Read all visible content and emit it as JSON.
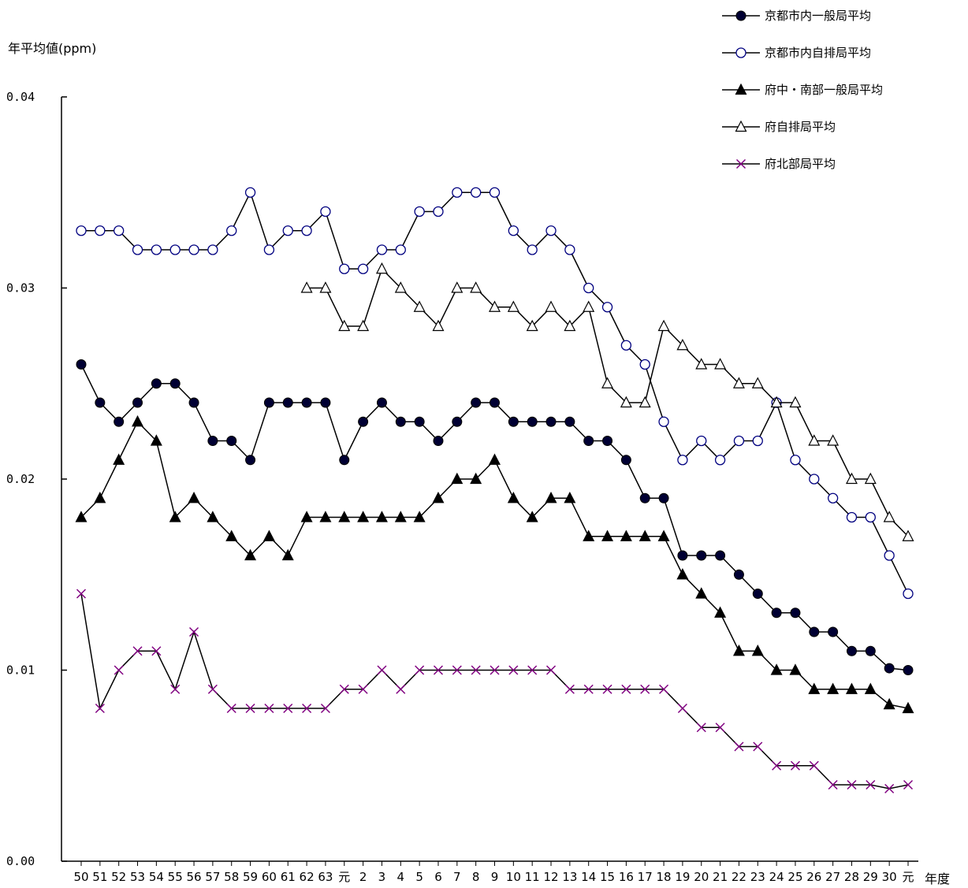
{
  "chart_data": {
    "type": "line",
    "title": "",
    "ylabel": "年平均値(ppm)",
    "xlabel": "年度",
    "ylim": [
      0,
      0.04
    ],
    "yticks": [
      0,
      0.01,
      0.02,
      0.03,
      0.04
    ],
    "ytick_labels": [
      "0.00",
      "0.01",
      "0.02",
      "0.03",
      "0.04"
    ],
    "grid": false,
    "legend_position": "top-right",
    "categories": [
      "50",
      "51",
      "52",
      "53",
      "54",
      "55",
      "56",
      "57",
      "58",
      "59",
      "60",
      "61",
      "62",
      "63",
      "元",
      "2",
      "3",
      "4",
      "5",
      "6",
      "7",
      "8",
      "9",
      "10",
      "11",
      "12",
      "13",
      "14",
      "15",
      "16",
      "17",
      "18",
      "19",
      "20",
      "21",
      "22",
      "23",
      "24",
      "25",
      "26",
      "27",
      "28",
      "29",
      "30",
      "元"
    ],
    "series": [
      {
        "name": "京都市内一般局平均",
        "marker": "filled-circle",
        "line_color": "#000000",
        "marker_color": "#000033",
        "values": [
          0.026,
          0.024,
          0.023,
          0.024,
          0.025,
          0.025,
          0.024,
          0.022,
          0.022,
          0.021,
          0.024,
          0.024,
          0.024,
          0.024,
          0.021,
          0.023,
          0.024,
          0.023,
          0.023,
          0.022,
          0.023,
          0.024,
          0.024,
          0.023,
          0.023,
          0.023,
          0.023,
          0.022,
          0.022,
          0.021,
          0.019,
          0.019,
          0.016,
          0.016,
          0.016,
          0.015,
          0.014,
          0.013,
          0.013,
          0.012,
          0.012,
          0.011,
          0.011,
          0.0101,
          0.01
        ]
      },
      {
        "name": "京都市内自排局平均",
        "marker": "open-circle",
        "line_color": "#000000",
        "marker_color": "#000080",
        "values": [
          0.033,
          0.033,
          0.033,
          0.032,
          0.032,
          0.032,
          0.032,
          0.032,
          0.033,
          0.035,
          0.032,
          0.033,
          0.033,
          0.034,
          0.031,
          0.031,
          0.032,
          0.032,
          0.034,
          0.034,
          0.035,
          0.035,
          0.035,
          0.033,
          0.032,
          0.033,
          0.032,
          0.03,
          0.029,
          0.027,
          0.026,
          0.023,
          0.021,
          0.022,
          0.021,
          0.022,
          0.022,
          0.024,
          0.021,
          0.02,
          0.019,
          0.018,
          0.018,
          0.016,
          0.014
        ]
      },
      {
        "name": "府中・南部一般局平均",
        "marker": "filled-triangle",
        "line_color": "#000000",
        "marker_color": "#000000",
        "values": [
          0.018,
          0.019,
          0.021,
          0.023,
          0.022,
          0.018,
          0.019,
          0.018,
          0.017,
          0.016,
          0.017,
          0.016,
          0.018,
          0.018,
          0.018,
          0.018,
          0.018,
          0.018,
          0.018,
          0.019,
          0.02,
          0.02,
          0.021,
          0.019,
          0.018,
          0.019,
          0.019,
          0.017,
          0.017,
          0.017,
          0.017,
          0.017,
          0.015,
          0.014,
          0.013,
          0.011,
          0.011,
          0.01,
          0.01,
          0.009,
          0.009,
          0.009,
          0.009,
          0.0082,
          0.008
        ]
      },
      {
        "name": "府自排局平均",
        "marker": "open-triangle",
        "line_color": "#000000",
        "marker_color": "#000000",
        "values": [
          null,
          null,
          null,
          null,
          null,
          null,
          null,
          null,
          null,
          null,
          null,
          null,
          0.03,
          0.03,
          0.028,
          0.028,
          0.031,
          0.03,
          0.029,
          0.028,
          0.03,
          0.03,
          0.029,
          0.029,
          0.028,
          0.029,
          0.028,
          0.029,
          0.025,
          0.024,
          0.024,
          0.028,
          0.027,
          0.026,
          0.026,
          0.025,
          0.025,
          0.024,
          0.024,
          0.022,
          0.022,
          0.02,
          0.02,
          0.018,
          0.017
        ]
      },
      {
        "name": "府北部局平均",
        "marker": "cross",
        "line_color": "#000000",
        "marker_color": "#800080",
        "values": [
          0.014,
          0.008,
          0.01,
          0.011,
          0.011,
          0.009,
          0.012,
          0.009,
          0.008,
          0.008,
          0.008,
          0.008,
          0.008,
          0.008,
          0.009,
          0.009,
          0.01,
          0.009,
          0.01,
          0.01,
          0.01,
          0.01,
          0.01,
          0.01,
          0.01,
          0.01,
          0.009,
          0.009,
          0.009,
          0.009,
          0.009,
          0.009,
          0.008,
          0.007,
          0.007,
          0.006,
          0.006,
          0.005,
          0.005,
          0.005,
          0.004,
          0.004,
          0.004,
          0.0038,
          0.004
        ]
      }
    ]
  }
}
